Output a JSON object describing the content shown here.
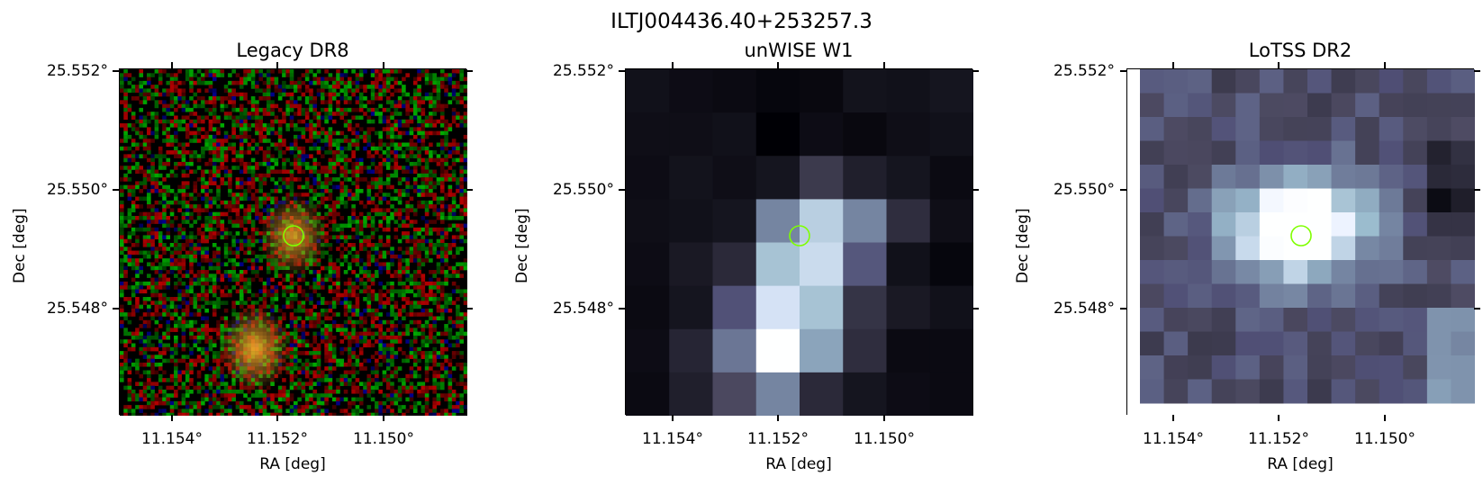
{
  "figure": {
    "suptitle": "ILTJ004436.40+253257.3"
  },
  "panels": [
    {
      "title": "Legacy DR8",
      "xlabel": "RA [deg]",
      "ylabel": "Dec [deg]",
      "xticks": [
        "11.154°",
        "11.152°",
        "11.150°"
      ],
      "yticks": [
        "25.552°",
        "25.550°",
        "25.548°"
      ],
      "image_kind": "rgb-noise-with-two-galaxies"
    },
    {
      "title": "unWISE W1",
      "xlabel": "RA [deg]",
      "ylabel": "Dec [deg]",
      "xticks": [
        "11.154°",
        "11.152°",
        "11.150°"
      ],
      "yticks": [
        "25.552°",
        "25.550°",
        "25.548°"
      ],
      "image_kind": "bone-colormap-coarse-pixels"
    },
    {
      "title": "LoTSS DR2",
      "xlabel": "RA [deg]",
      "ylabel": "Dec [deg]",
      "xticks": [
        "11.154°",
        "11.152°",
        "11.150°"
      ],
      "yticks": [
        "25.552°",
        "25.550°",
        "25.548°"
      ],
      "image_kind": "bone-colormap-radio-map"
    }
  ],
  "marker": {
    "shape": "circle",
    "color": "#7fff00"
  }
}
